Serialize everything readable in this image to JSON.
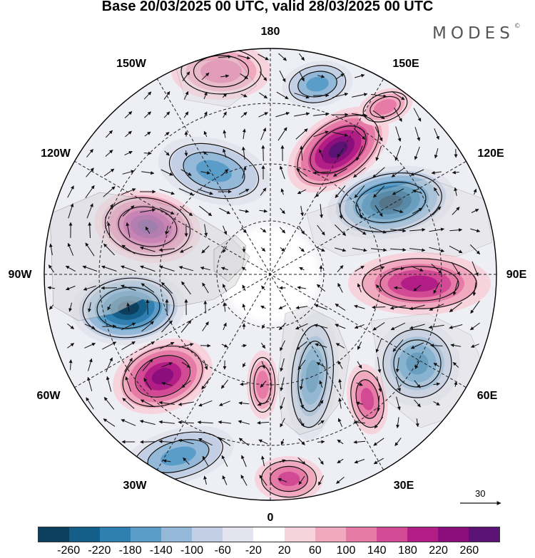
{
  "title": "Base 20/03/2025 00 UTC, valid 28/03/2025 00 UTC",
  "brand": "MODES",
  "brand_mark": "©",
  "longitude_labels": {
    "top": "180",
    "bottom": "0",
    "left": "90W",
    "right": "90E",
    "upper_left_1": "150W",
    "upper_left_2": "120W",
    "lower_left_1": "60W",
    "lower_left_2": "30W",
    "upper_right_1": "150E",
    "upper_right_2": "120E",
    "lower_right_1": "60E",
    "lower_right_2": "30E"
  },
  "reference_vector_label": "30",
  "colorbar": {
    "ticks": [
      "-260",
      "-220",
      "-180",
      "-140",
      "-100",
      "-60",
      "-20",
      "20",
      "60",
      "100",
      "140",
      "180",
      "220",
      "260"
    ],
    "colors": [
      "#0c3f5e",
      "#135f8a",
      "#2f7fb0",
      "#5b9dc9",
      "#93b8d8",
      "#c3cfe5",
      "#e4e4ef",
      "#ffffff",
      "#f7d3dd",
      "#f1a9c0",
      "#e57ba6",
      "#d24a93",
      "#b31e86",
      "#8a0f7c",
      "#5a1275"
    ]
  }
}
